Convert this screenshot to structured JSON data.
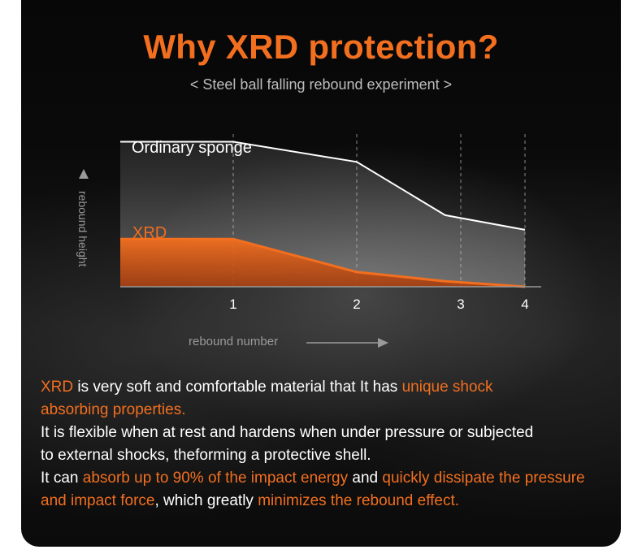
{
  "header": {
    "title": "Why XRD protection?",
    "subtitle": "< Steel ball falling rebound experiment >"
  },
  "colors": {
    "accent": "#f26f1f",
    "white_line": "#ffffff",
    "background": "#0a0a0a"
  },
  "chart_data": {
    "type": "area",
    "ylabel": "rebound height",
    "xlabel": "rebound number",
    "ticks": [
      "1",
      "2",
      "3",
      "4"
    ],
    "tick_values": [
      1,
      2,
      3,
      4
    ],
    "xlim": [
      0.1,
      4
    ],
    "ylim": [
      0,
      1
    ],
    "grid": "vertical dashed lines at ticks",
    "series": [
      {
        "name": "Ordinary sponge",
        "color": "#ffffff",
        "x": [
          0.1,
          1,
          2,
          2.85,
          4
        ],
        "y": [
          0.79,
          0.79,
          0.68,
          0.39,
          0.31
        ]
      },
      {
        "name": "XRD",
        "color": "#f26f1f",
        "x": [
          0.1,
          1,
          2,
          2.85,
          4
        ],
        "y": [
          0.26,
          0.26,
          0.08,
          0.03,
          0.0
        ]
      }
    ]
  },
  "description": [
    [
      {
        "t": "XRD",
        "o": true
      },
      {
        "t": " is very soft and comfortable material that It has ",
        "o": false
      },
      {
        "t": "unique shock",
        "o": true
      }
    ],
    [
      {
        "t": "absorbing properties.",
        "o": true
      }
    ],
    [
      {
        "t": "It is flexible when at rest and hardens when under pressure or subjected",
        "o": false
      }
    ],
    [
      {
        "t": "to external shocks, theforming a protective shell.",
        "o": false
      }
    ],
    [
      {
        "t": "It can ",
        "o": false
      },
      {
        "t": "absorb up to 90% of the impact energy",
        "o": true
      },
      {
        "t": " and ",
        "o": false
      },
      {
        "t": "quickly dissipate the pressure",
        "o": true
      }
    ],
    [
      {
        "t": "and impact force",
        "o": true
      },
      {
        "t": ", which greatly ",
        "o": false
      },
      {
        "t": "minimizes the rebound effect.",
        "o": true
      }
    ]
  ]
}
